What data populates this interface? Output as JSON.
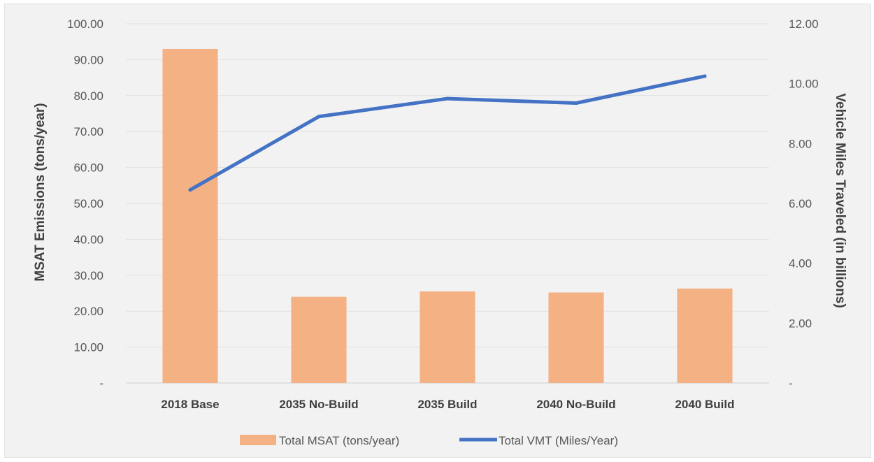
{
  "chart_data": {
    "type": "bar",
    "categories": [
      "2018 Base",
      "2035 No-Build",
      "2035 Build",
      "2040 No-Build",
      "2040 Build"
    ],
    "series": [
      {
        "name": "Total MSAT (tons/year)",
        "type": "bar",
        "axis": "left",
        "color": "#f4b183",
        "values": [
          93.0,
          24.0,
          25.5,
          25.2,
          26.3
        ]
      },
      {
        "name": "Total VMT (Miles/Year)",
        "type": "line",
        "axis": "right",
        "color": "#4472c4",
        "values": [
          6.45,
          8.9,
          9.5,
          9.35,
          10.25
        ]
      }
    ],
    "ylabel": "MSAT Emissions (tons/year)",
    "y2label": "Vehicle Miles Traveled (in billions)",
    "ylim": [
      0,
      100
    ],
    "y2lim": [
      0,
      12
    ],
    "yticks": [
      "-",
      "10.00",
      "20.00",
      "30.00",
      "40.00",
      "50.00",
      "60.00",
      "70.00",
      "80.00",
      "90.00",
      "100.00"
    ],
    "y2ticks": [
      "-",
      "2.00",
      "4.00",
      "6.00",
      "8.00",
      "10.00",
      "12.00"
    ],
    "grid": true,
    "legend": "bottom"
  }
}
